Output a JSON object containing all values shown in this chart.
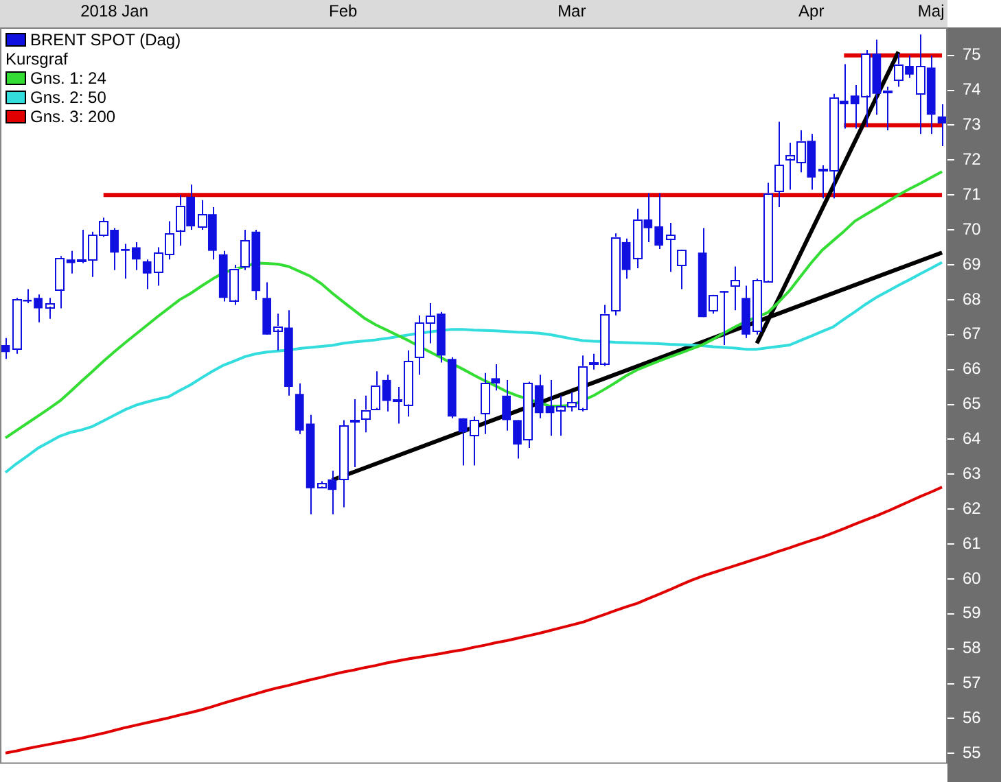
{
  "chart_data": {
    "type": "candlestick",
    "legend": "top left",
    "legend_title": "Kursgraf",
    "marker": "none",
    "categories": [
      null,
      null,
      null,
      null,
      null,
      null,
      null,
      null,
      null,
      null,
      "2018 Jan",
      null,
      null,
      null,
      null,
      null,
      null,
      null,
      null,
      null,
      null,
      null,
      null,
      null,
      null,
      null,
      null,
      null,
      null,
      null,
      null,
      "Feb",
      null,
      null,
      null,
      null,
      null,
      null,
      null,
      null,
      null,
      null,
      null,
      null,
      null,
      null,
      null,
      null,
      null,
      null,
      null,
      null,
      "Mar",
      null,
      null,
      null,
      null,
      null,
      null,
      null,
      null,
      null,
      null,
      null,
      null,
      null,
      null,
      null,
      null,
      null,
      null,
      null,
      null,
      null,
      "Apr",
      null,
      null,
      null,
      null,
      null,
      null,
      null,
      null,
      null,
      null,
      "Maj",
      null
    ],
    "ylim": [
      54.7,
      75.8
    ],
    "yticks": [
      55,
      56,
      57,
      58,
      59,
      60,
      61,
      62,
      63,
      64,
      65,
      66,
      67,
      68,
      69,
      70,
      71,
      72,
      73,
      74,
      75
    ],
    "series": [
      {
        "type": "candlestick",
        "name": "BRENT SPOT (Dag)",
        "color": "#1010e0",
        "colors": [
          "#1010e0",
          "#ffffff",
          "#1010e0",
          "#1010e0",
          "#ffffff",
          "#ffffff",
          "#1010e0",
          "#ffffff",
          "#ffffff",
          "#ffffff",
          "#1010e0",
          "#1010e0",
          "#1010e0",
          "#1010e0",
          "#ffffff",
          "#ffffff",
          "#ffffff",
          "#1010e0",
          "#ffffff",
          "#1010e0",
          "#1010e0",
          "#ffffff",
          "#ffffff",
          "#1010e0",
          "#1010e0",
          "#ffffff",
          "#1010e0",
          "#1010e0",
          "#1010e0",
          "#ffffff",
          "#1010e0",
          "#ffffff",
          "#ffffff",
          "#ffffff",
          "#ffffff",
          "#1010e0",
          "#ffffff",
          "#ffffff",
          "#ffffff",
          "#ffffff",
          "#1010e0",
          "#1010e0",
          "#1010e0",
          "#ffffff",
          "#ffffff",
          "#1010e0",
          "#1010e0",
          "#1010e0",
          "#ffffff",
          "#1010e0",
          "#1010e0",
          "#ffffff",
          "#ffffff",
          "#ffffff",
          "#ffffff",
          "#ffffff",
          "#ffffff",
          "#1010e0",
          "#ffffff",
          "#1010e0",
          "#1010e0",
          "#ffffff",
          "#ffffff",
          null,
          "#1010e0",
          "#ffffff",
          "#1010e0",
          "#ffffff",
          "#1010e0",
          "#ffffff",
          "#ffffff",
          "#ffffff",
          "#ffffff",
          "#ffffff",
          "#1010e0",
          "#ffffff",
          "#ffffff",
          "#1010e0",
          "#1010e0",
          "#ffffff",
          "#1010e0",
          "#ffffff",
          "#ffffff",
          "#1010e0",
          "#ffffff",
          "#1010e0",
          "#1010e0"
        ],
        "ohlc": [
          [
            66.7,
            66.9,
            66.3,
            66.5
          ],
          [
            66.6,
            68.05,
            66.45,
            68.0
          ],
          [
            68.0,
            68.3,
            67.9,
            67.95
          ],
          [
            68.05,
            68.15,
            67.35,
            67.75
          ],
          [
            67.8,
            68.05,
            67.45,
            67.9
          ],
          [
            68.3,
            69.25,
            67.75,
            69.2
          ],
          [
            69.15,
            69.4,
            68.75,
            69.05
          ],
          [
            69.1,
            70.0,
            69.05,
            69.15
          ],
          [
            69.15,
            69.95,
            68.65,
            69.85
          ],
          [
            69.85,
            70.35,
            69.8,
            70.25
          ],
          [
            70.0,
            70.05,
            68.85,
            69.35
          ],
          [
            69.45,
            69.6,
            68.6,
            69.4
          ],
          [
            69.5,
            69.65,
            68.85,
            69.15
          ],
          [
            69.1,
            69.15,
            68.3,
            68.75
          ],
          [
            68.8,
            69.5,
            68.4,
            69.35
          ],
          [
            69.3,
            70.25,
            69.15,
            69.9
          ],
          [
            70.0,
            71.0,
            69.55,
            70.7
          ],
          [
            70.95,
            71.3,
            70.0,
            70.1
          ],
          [
            70.1,
            70.85,
            70.0,
            70.45
          ],
          [
            70.45,
            70.65,
            69.15,
            69.4
          ],
          [
            69.3,
            69.4,
            67.95,
            68.05
          ],
          [
            68.0,
            69.0,
            67.85,
            68.9
          ],
          [
            68.95,
            70.0,
            68.85,
            69.7
          ],
          [
            69.95,
            70.0,
            68.0,
            68.25
          ],
          [
            68.05,
            68.5,
            67.0,
            67.0
          ],
          [
            67.15,
            67.6,
            66.55,
            67.25
          ],
          [
            67.2,
            67.7,
            65.25,
            65.5
          ],
          [
            65.3,
            65.6,
            64.15,
            64.25
          ],
          [
            64.45,
            64.7,
            61.85,
            62.6
          ],
          [
            62.65,
            62.8,
            62.6,
            62.75
          ],
          [
            62.85,
            63.1,
            61.85,
            62.55
          ],
          [
            62.85,
            64.55,
            62.05,
            64.4
          ],
          [
            64.5,
            65.15,
            63.2,
            64.55
          ],
          [
            64.6,
            65.25,
            64.2,
            64.85
          ],
          [
            64.9,
            65.95,
            64.85,
            65.55
          ],
          [
            65.7,
            65.85,
            64.8,
            65.1
          ],
          [
            65.1,
            65.5,
            64.45,
            65.15
          ],
          [
            65.0,
            66.55,
            64.65,
            66.25
          ],
          [
            66.35,
            67.55,
            65.85,
            67.35
          ],
          [
            67.35,
            67.9,
            66.75,
            67.55
          ],
          [
            67.6,
            67.65,
            66.2,
            66.4
          ],
          [
            66.3,
            66.35,
            64.6,
            64.65
          ],
          [
            64.6,
            64.6,
            63.25,
            64.2
          ],
          [
            64.1,
            64.65,
            63.25,
            64.55
          ],
          [
            64.75,
            65.9,
            64.15,
            65.6
          ],
          [
            65.75,
            66.15,
            65.4,
            65.6
          ],
          [
            65.25,
            65.7,
            64.25,
            64.55
          ],
          [
            64.55,
            64.55,
            63.45,
            63.85
          ],
          [
            64.0,
            65.65,
            63.75,
            65.6
          ],
          [
            65.55,
            65.85,
            64.6,
            64.75
          ],
          [
            64.95,
            65.7,
            64.1,
            64.75
          ],
          [
            64.85,
            65.25,
            64.1,
            64.95
          ],
          [
            64.95,
            65.35,
            64.8,
            65.05
          ],
          [
            64.9,
            66.4,
            64.8,
            66.1
          ],
          [
            66.15,
            66.45,
            66.0,
            66.2
          ],
          [
            66.2,
            67.85,
            66.1,
            67.6
          ],
          [
            67.7,
            69.9,
            67.55,
            69.8
          ],
          [
            69.65,
            69.75,
            68.6,
            68.85
          ],
          [
            69.2,
            70.6,
            68.9,
            70.3
          ],
          [
            70.3,
            71.05,
            69.65,
            70.05
          ],
          [
            70.1,
            71.05,
            69.45,
            69.55
          ],
          [
            69.75,
            70.2,
            68.8,
            69.85
          ],
          [
            69.0,
            69.45,
            68.3,
            69.45
          ],
          null,
          [
            69.35,
            70.05,
            67.5,
            67.5
          ],
          [
            67.7,
            68.15,
            67.6,
            68.15
          ],
          [
            68.25,
            68.25,
            66.7,
            68.2
          ],
          [
            68.4,
            68.95,
            67.7,
            68.55
          ],
          [
            68.05,
            68.4,
            66.9,
            67.0
          ],
          [
            67.1,
            68.6,
            67.0,
            68.55
          ],
          [
            68.55,
            71.35,
            68.5,
            71.05
          ],
          [
            71.1,
            73.1,
            70.65,
            71.85
          ],
          [
            72.05,
            72.5,
            71.15,
            72.15
          ],
          [
            71.95,
            72.85,
            71.65,
            72.55
          ],
          [
            72.55,
            72.75,
            71.15,
            71.5
          ],
          [
            71.7,
            71.85,
            70.9,
            71.75
          ],
          [
            71.7,
            73.9,
            70.9,
            73.8
          ],
          [
            73.7,
            74.75,
            72.9,
            73.6
          ],
          [
            73.85,
            74.15,
            72.9,
            73.6
          ],
          [
            73.85,
            75.15,
            72.95,
            75.05
          ],
          [
            75.05,
            75.45,
            73.3,
            73.9
          ],
          [
            73.95,
            74.1,
            72.85,
            74.0
          ],
          [
            74.3,
            75.05,
            74.1,
            74.75
          ],
          [
            74.7,
            75.0,
            74.35,
            74.45
          ],
          [
            73.9,
            75.6,
            72.75,
            74.7
          ],
          [
            74.65,
            75.0,
            72.75,
            73.3
          ],
          [
            73.25,
            73.6,
            72.4,
            73.05
          ]
        ]
      },
      {
        "type": "line",
        "name": "Gns. 1: 24",
        "color": "#33dd33",
        "values": [
          64.04,
          64.25,
          64.46,
          64.67,
          64.88,
          65.1,
          65.38,
          65.67,
          65.95,
          66.24,
          66.51,
          66.77,
          67.02,
          67.27,
          67.52,
          67.76,
          68.0,
          68.18,
          68.39,
          68.59,
          68.77,
          68.87,
          68.95,
          69.05,
          69.04,
          69.02,
          68.95,
          68.81,
          68.67,
          68.46,
          68.19,
          67.94,
          67.7,
          67.46,
          67.28,
          67.13,
          66.98,
          66.83,
          66.66,
          66.5,
          66.34,
          66.17,
          66.01,
          65.84,
          65.68,
          65.53,
          65.37,
          65.25,
          65.15,
          65.05,
          64.95,
          64.95,
          64.98,
          65.11,
          65.25,
          65.43,
          65.62,
          65.82,
          65.99,
          66.12,
          66.24,
          66.36,
          66.47,
          66.59,
          66.71,
          66.87,
          67.05,
          67.22,
          67.38,
          67.5,
          67.63,
          67.93,
          68.26,
          68.66,
          69.06,
          69.42,
          69.69,
          69.96,
          70.25,
          70.44,
          70.62,
          70.81,
          71.0,
          71.17,
          71.33,
          71.5,
          71.67
        ]
      },
      {
        "type": "line",
        "name": "Gns. 2: 50",
        "color": "#33dddd",
        "values": [
          63.05,
          63.3,
          63.52,
          63.75,
          63.92,
          64.09,
          64.2,
          64.27,
          64.37,
          64.53,
          64.69,
          64.85,
          64.98,
          65.07,
          65.15,
          65.22,
          65.4,
          65.56,
          65.76,
          65.95,
          66.12,
          66.24,
          66.37,
          66.45,
          66.5,
          66.53,
          66.56,
          66.6,
          66.63,
          66.66,
          66.69,
          66.75,
          66.79,
          66.82,
          66.85,
          66.89,
          66.94,
          66.99,
          67.04,
          67.08,
          67.12,
          67.15,
          67.15,
          67.13,
          67.12,
          67.11,
          67.09,
          67.07,
          67.06,
          67.04,
          67.0,
          66.94,
          66.88,
          66.83,
          66.81,
          66.8,
          66.78,
          66.77,
          66.76,
          66.75,
          66.74,
          66.72,
          66.71,
          66.7,
          66.68,
          66.65,
          66.63,
          66.61,
          66.58,
          66.58,
          66.62,
          66.66,
          66.7,
          66.83,
          66.96,
          67.09,
          67.22,
          67.44,
          67.65,
          67.87,
          68.07,
          68.24,
          68.41,
          68.57,
          68.74,
          68.9,
          69.07
        ]
      },
      {
        "type": "line",
        "name": "Gns. 3: 200",
        "color": "#e00000",
        "values": [
          55.01,
          55.07,
          55.14,
          55.2,
          55.26,
          55.32,
          55.38,
          55.44,
          55.51,
          55.58,
          55.66,
          55.74,
          55.81,
          55.88,
          55.95,
          56.02,
          56.1,
          56.17,
          56.25,
          56.34,
          56.44,
          56.53,
          56.62,
          56.71,
          56.8,
          56.88,
          56.95,
          57.03,
          57.11,
          57.18,
          57.26,
          57.33,
          57.39,
          57.46,
          57.52,
          57.59,
          57.65,
          57.71,
          57.76,
          57.81,
          57.86,
          57.92,
          57.97,
          58.04,
          58.1,
          58.17,
          58.23,
          58.3,
          58.37,
          58.44,
          58.52,
          58.6,
          58.68,
          58.76,
          58.87,
          58.98,
          59.09,
          59.2,
          59.3,
          59.43,
          59.56,
          59.69,
          59.83,
          59.96,
          60.08,
          60.18,
          60.28,
          60.38,
          60.48,
          60.58,
          60.68,
          60.79,
          60.89,
          61.0,
          61.1,
          61.2,
          61.32,
          61.44,
          61.57,
          61.69,
          61.81,
          61.94,
          62.08,
          62.22,
          62.36,
          62.49,
          62.63
        ]
      },
      {
        "type": "line",
        "color": "#000000",
        "values": [
          null,
          null,
          null,
          null,
          null,
          null,
          null,
          null,
          null,
          null,
          null,
          null,
          null,
          null,
          null,
          null,
          null,
          null,
          null,
          null,
          null,
          null,
          null,
          null,
          null,
          null,
          null,
          null,
          null,
          null,
          62.83,
          null,
          null,
          null,
          null,
          null,
          null,
          null,
          null,
          null,
          null,
          null,
          null,
          null,
          null,
          null,
          null,
          null,
          null,
          null,
          null,
          null,
          null,
          null,
          null,
          null,
          null,
          null,
          null,
          null,
          null,
          null,
          null,
          null,
          null,
          null,
          null,
          null,
          null,
          null,
          null,
          null,
          null,
          null,
          null,
          null,
          null,
          null,
          null,
          null,
          null,
          null,
          null,
          null,
          null,
          null,
          69.35
        ]
      },
      {
        "type": "line",
        "color": "#000000",
        "values": [
          null,
          null,
          null,
          null,
          null,
          null,
          null,
          null,
          null,
          null,
          null,
          null,
          null,
          null,
          null,
          null,
          null,
          null,
          null,
          null,
          null,
          null,
          null,
          null,
          null,
          null,
          null,
          null,
          null,
          null,
          null,
          null,
          null,
          null,
          null,
          null,
          null,
          null,
          null,
          null,
          null,
          null,
          null,
          null,
          null,
          null,
          null,
          null,
          null,
          null,
          null,
          null,
          null,
          null,
          null,
          null,
          null,
          null,
          null,
          null,
          null,
          null,
          null,
          null,
          null,
          null,
          null,
          null,
          null,
          66.75,
          null,
          null,
          null,
          null,
          null,
          null,
          null,
          null,
          null,
          null,
          null,
          null,
          75.1,
          null,
          null,
          null,
          null
        ]
      },
      {
        "type": "line",
        "color": "#e00000",
        "values": [
          null,
          null,
          null,
          null,
          null,
          null,
          null,
          null,
          null,
          71,
          null,
          null,
          null,
          null,
          null,
          null,
          null,
          null,
          null,
          null,
          null,
          null,
          null,
          null,
          null,
          null,
          null,
          null,
          null,
          null,
          null,
          null,
          null,
          null,
          null,
          null,
          null,
          null,
          null,
          null,
          null,
          null,
          null,
          null,
          null,
          null,
          null,
          null,
          null,
          null,
          null,
          null,
          null,
          null,
          null,
          null,
          null,
          null,
          null,
          null,
          null,
          null,
          null,
          null,
          null,
          null,
          null,
          null,
          null,
          null,
          null,
          null,
          null,
          null,
          null,
          null,
          null,
          null,
          null,
          null,
          null,
          null,
          null,
          null,
          null,
          null,
          71
        ]
      },
      {
        "type": "line",
        "color": "#e00000",
        "values": [
          null,
          null,
          null,
          null,
          null,
          null,
          null,
          null,
          null,
          null,
          null,
          null,
          null,
          null,
          null,
          null,
          null,
          null,
          null,
          null,
          null,
          null,
          null,
          null,
          null,
          null,
          null,
          null,
          null,
          null,
          null,
          null,
          null,
          null,
          null,
          null,
          null,
          null,
          null,
          null,
          null,
          null,
          null,
          null,
          null,
          null,
          null,
          null,
          null,
          null,
          null,
          null,
          null,
          null,
          null,
          null,
          null,
          null,
          null,
          null,
          null,
          null,
          null,
          null,
          null,
          null,
          null,
          null,
          null,
          null,
          null,
          null,
          null,
          null,
          null,
          null,
          null,
          75,
          null,
          null,
          null,
          null,
          null,
          null,
          null,
          null,
          75
        ]
      },
      {
        "type": "line",
        "color": "#e00000",
        "values": [
          null,
          null,
          null,
          null,
          null,
          null,
          null,
          null,
          null,
          null,
          null,
          null,
          null,
          null,
          null,
          null,
          null,
          null,
          null,
          null,
          null,
          null,
          null,
          null,
          null,
          null,
          null,
          null,
          null,
          null,
          null,
          null,
          null,
          null,
          null,
          null,
          null,
          null,
          null,
          null,
          null,
          null,
          null,
          null,
          null,
          null,
          null,
          null,
          null,
          null,
          null,
          null,
          null,
          null,
          null,
          null,
          null,
          null,
          null,
          null,
          null,
          null,
          null,
          null,
          null,
          null,
          null,
          null,
          null,
          null,
          null,
          null,
          null,
          null,
          null,
          null,
          null,
          73,
          null,
          null,
          null,
          null,
          null,
          null,
          null,
          null,
          73
        ]
      }
    ]
  }
}
